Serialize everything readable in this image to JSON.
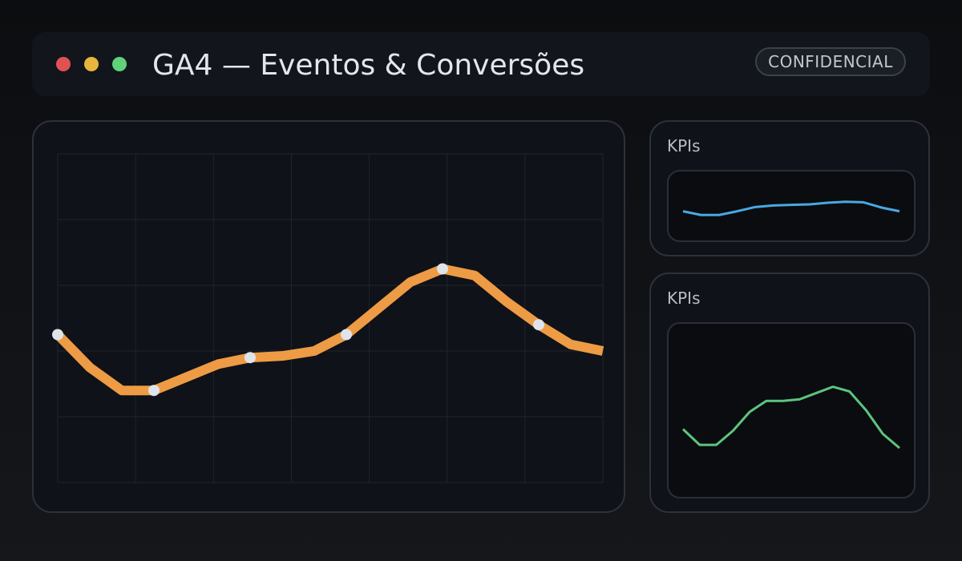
{
  "window": {
    "title": "GA4 — Eventos & Conversões",
    "badge": "CONFIDENCIAL",
    "controls": [
      {
        "name": "close",
        "color": "#e05252"
      },
      {
        "name": "minimize",
        "color": "#e6b73c"
      },
      {
        "name": "maximize",
        "color": "#5fd17a"
      }
    ]
  },
  "colors": {
    "main_line": "#ee9b45",
    "marker": "#dfe3ea",
    "kpi_top_line": "#4aa8e0",
    "kpi_bottom_line": "#5cc57e",
    "grid": "#1f242c"
  },
  "chart_data": [
    {
      "type": "line",
      "x": [
        0,
        1,
        2,
        3,
        4,
        5,
        6,
        7,
        8,
        9,
        10,
        11,
        12,
        13,
        14,
        15,
        16,
        17
      ],
      "values": [
        45,
        35,
        28,
        28,
        32,
        36,
        38,
        38.5,
        40,
        45,
        53,
        61,
        65,
        63,
        55,
        48,
        42,
        40
      ],
      "ylim": [
        0,
        100
      ],
      "markers_at": [
        0,
        3,
        6,
        9,
        12,
        15
      ],
      "grid": true
    },
    {
      "type": "line",
      "title": "KPIs",
      "values": [
        40,
        33,
        33,
        40,
        48,
        51,
        52,
        53,
        56,
        58,
        57,
        47,
        40
      ],
      "ylim": [
        0,
        100
      ]
    },
    {
      "type": "line",
      "title": "KPIs",
      "values": [
        38,
        28,
        28,
        37,
        49,
        56,
        56,
        57,
        61,
        65,
        62,
        50,
        35,
        26
      ],
      "ylim": [
        0,
        100
      ]
    }
  ]
}
